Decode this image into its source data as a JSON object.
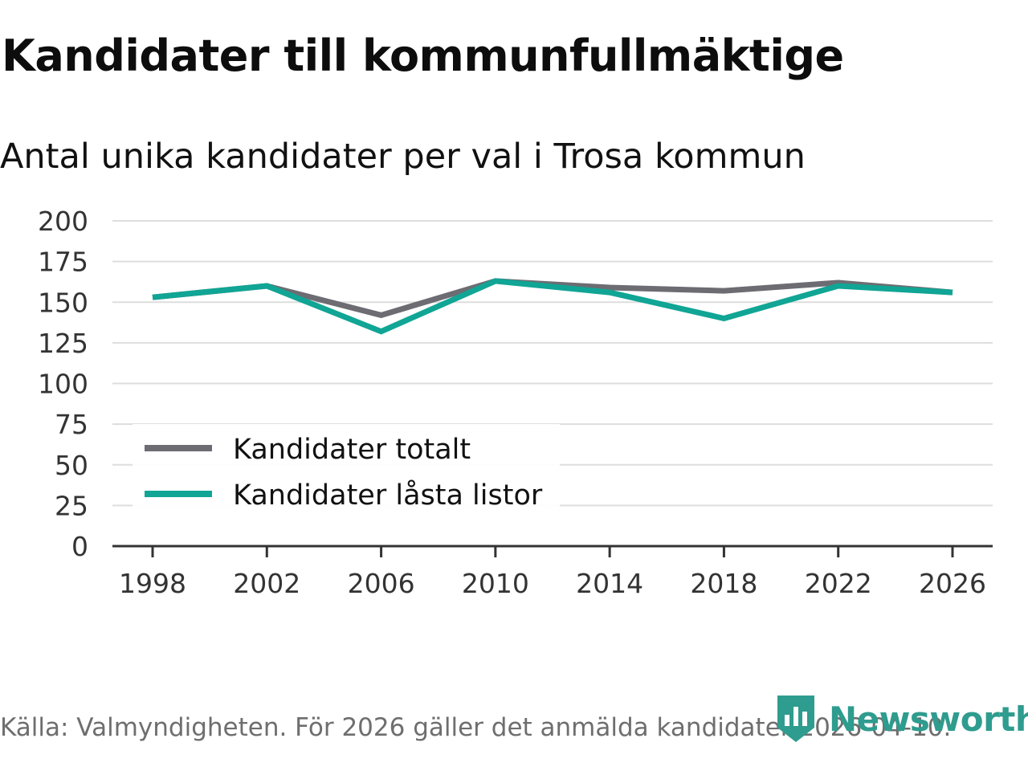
{
  "header": {
    "title": "Kandidater till kommunfullmäktige",
    "subtitle": "Antal unika kandidater per val i Trosa kommun"
  },
  "footer": {
    "source": "Källa: Valmyndigheten. För 2026 gäller det anmälda kandidater 2026-04-10.",
    "brand": "Newsworthy"
  },
  "colors": {
    "series_total": "#6d6c72",
    "series_locked": "#10a595",
    "grid": "#dddddd",
    "axis": "#333333",
    "brand": "#2e9c8e"
  },
  "chart_data": {
    "type": "line",
    "title": "Kandidater till kommunfullmäktige",
    "subtitle": "Antal unika kandidater per val i Trosa kommun",
    "x": [
      1998,
      2002,
      2006,
      2010,
      2014,
      2018,
      2022,
      2026
    ],
    "xlabel": "",
    "ylabel": "",
    "ylim": [
      0,
      200
    ],
    "yticks": [
      0,
      25,
      50,
      75,
      100,
      125,
      150,
      175,
      200
    ],
    "grid": true,
    "legend_position": "bottom-left",
    "series": [
      {
        "name": "Kandidater totalt",
        "values": [
          153,
          160,
          142,
          163,
          159,
          157,
          162,
          156
        ]
      },
      {
        "name": "Kandidater låsta listor",
        "values": [
          153,
          160,
          132,
          163,
          156,
          140,
          160,
          156
        ]
      }
    ]
  }
}
